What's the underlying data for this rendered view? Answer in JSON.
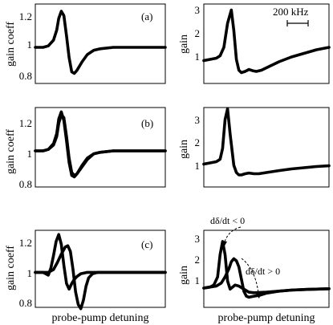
{
  "chart_data": [
    {
      "panel": "a-left",
      "type": "line",
      "label": "(a)",
      "ylabel": "gain coeff",
      "xlabel": "",
      "ylim": [
        0.75,
        1.3
      ],
      "yticks": [
        0.8,
        1,
        1.2
      ],
      "series": [
        {
          "x": [
            0,
            6,
            10,
            14,
            16.5,
            18,
            20,
            22,
            24,
            26,
            28,
            30,
            32,
            36,
            40,
            45,
            50,
            60,
            70,
            80,
            90,
            100
          ],
          "y": [
            1.0,
            1.0,
            1.01,
            1.05,
            1.12,
            1.2,
            1.25,
            1.22,
            1.08,
            0.93,
            0.83,
            0.82,
            0.84,
            0.9,
            0.95,
            0.98,
            0.99,
            1.0,
            1.0,
            1.0,
            1.0,
            1.0
          ]
        }
      ]
    },
    {
      "panel": "a-right",
      "type": "line",
      "label": "",
      "ylabel": "gain",
      "xlabel": "",
      "ylim": [
        0,
        3.3
      ],
      "yticks": [
        1,
        2,
        3
      ],
      "annotation": "200 kHz",
      "series": [
        {
          "x": [
            0,
            5,
            10,
            13,
            16,
            19,
            22,
            24,
            26,
            28,
            30,
            33,
            36,
            39,
            42,
            46,
            50,
            60,
            70,
            80,
            90,
            100
          ],
          "y": [
            0.95,
            1.0,
            1.05,
            1.15,
            1.5,
            2.5,
            3.05,
            2.2,
            1.0,
            0.55,
            0.45,
            0.5,
            0.58,
            0.53,
            0.5,
            0.55,
            0.65,
            0.9,
            1.1,
            1.25,
            1.4,
            1.5
          ]
        }
      ]
    },
    {
      "panel": "b-left",
      "type": "line",
      "label": "(b)",
      "ylabel": "gain coeff",
      "xlabel": "",
      "ylim": [
        0.75,
        1.3
      ],
      "yticks": [
        0.8,
        1,
        1.2
      ],
      "series": [
        {
          "x": [
            0,
            6,
            10,
            14,
            16.5,
            18,
            20,
            22,
            24,
            26,
            28,
            30,
            32,
            36,
            40,
            45,
            50,
            60,
            70,
            80,
            90,
            100
          ],
          "y": [
            1.0,
            1.0,
            1.01,
            1.05,
            1.12,
            1.22,
            1.27,
            1.21,
            1.07,
            0.92,
            0.83,
            0.82,
            0.84,
            0.9,
            0.95,
            0.98,
            0.99,
            1.0,
            1.0,
            1.0,
            1.0,
            1.0
          ]
        },
        {
          "x": [
            0,
            6,
            10,
            14,
            16.5,
            18,
            20,
            22,
            24,
            26,
            28,
            30,
            32,
            36,
            40,
            45,
            50,
            60,
            70,
            80,
            90,
            100
          ],
          "y": [
            1.0,
            1.0,
            1.01,
            1.04,
            1.1,
            1.19,
            1.25,
            1.23,
            1.1,
            0.95,
            0.85,
            0.83,
            0.84,
            0.89,
            0.94,
            0.98,
            0.99,
            1.0,
            1.0,
            1.0,
            1.0,
            1.0
          ]
        }
      ]
    },
    {
      "panel": "b-right",
      "type": "line",
      "label": "",
      "ylabel": "gain",
      "xlabel": "",
      "ylim": [
        0,
        3.3
      ],
      "yticks": [
        1,
        2,
        3
      ],
      "series": [
        {
          "x": [
            0,
            5,
            10,
            13,
            15,
            17,
            19,
            21,
            24,
            26,
            28,
            30,
            33,
            36,
            40,
            44,
            50,
            60,
            70,
            80,
            90,
            100
          ],
          "y": [
            0.95,
            1.0,
            1.05,
            1.15,
            1.6,
            2.8,
            3.25,
            2.2,
            0.9,
            0.6,
            0.5,
            0.5,
            0.55,
            0.58,
            0.55,
            0.55,
            0.6,
            0.68,
            0.75,
            0.8,
            0.85,
            0.88
          ]
        }
      ]
    },
    {
      "panel": "c-left",
      "type": "line",
      "label": "(c)",
      "ylabel": "gain coeff",
      "xlabel": "probe-pump detuning",
      "ylim": [
        0.75,
        1.3
      ],
      "yticks": [
        0.8,
        1,
        1.2
      ],
      "series": [
        {
          "x": [
            0,
            6,
            10,
            12,
            14,
            16,
            18,
            20,
            22,
            24,
            26,
            28,
            30,
            32,
            35,
            40,
            45,
            50,
            60,
            70,
            80,
            90,
            100
          ],
          "y": [
            1.0,
            1.0,
            0.98,
            1.03,
            1.12,
            1.22,
            1.27,
            1.2,
            1.05,
            0.92,
            0.88,
            0.92,
            0.95,
            0.97,
            0.99,
            1.0,
            1.0,
            1.0,
            1.0,
            1.0,
            1.0,
            1.0,
            1.0
          ]
        },
        {
          "x": [
            0,
            6,
            10,
            14,
            17,
            20,
            23,
            25,
            27,
            29,
            31,
            33,
            35,
            37,
            39,
            41,
            44,
            48,
            52,
            58,
            66,
            75,
            85,
            100
          ],
          "y": [
            1.0,
            1.0,
            1.0,
            1.02,
            1.07,
            1.13,
            1.18,
            1.19,
            1.15,
            1.02,
            0.86,
            0.77,
            0.74,
            0.8,
            0.9,
            0.96,
            0.99,
            1.0,
            1.0,
            1.0,
            1.0,
            1.0,
            1.0,
            1.0
          ]
        }
      ]
    },
    {
      "panel": "c-right",
      "type": "line",
      "label": "",
      "ylabel": "gain",
      "xlabel": "probe-pump detuning",
      "ylim": [
        0,
        3.8
      ],
      "yticks": [
        1,
        2,
        3
      ],
      "annotations": [
        "dδ/dt < 0",
        "dδ/dt > 0"
      ],
      "series": [
        {
          "x": [
            0,
            5,
            8,
            11,
            13,
            15,
            17,
            19,
            21,
            23,
            25,
            28,
            32,
            36,
            40,
            50,
            60,
            70,
            80,
            90,
            100
          ],
          "y": [
            0.95,
            1.0,
            1.1,
            1.5,
            2.6,
            3.25,
            2.6,
            1.3,
            0.9,
            1.0,
            1.1,
            1.05,
            0.9,
            0.75,
            0.72,
            0.75,
            0.8,
            0.85,
            0.88,
            0.9,
            0.92
          ]
        },
        {
          "x": [
            0,
            5,
            10,
            14,
            17,
            20,
            22,
            24,
            26,
            28,
            30,
            32,
            34,
            36,
            40,
            45,
            50,
            60,
            70,
            80,
            90,
            100
          ],
          "y": [
            0.95,
            1.0,
            1.05,
            1.2,
            1.5,
            1.9,
            2.25,
            2.4,
            2.3,
            2.0,
            1.4,
            0.8,
            0.55,
            0.5,
            0.55,
            0.6,
            0.7,
            0.8,
            0.85,
            0.88,
            0.9,
            0.92
          ]
        }
      ]
    }
  ]
}
